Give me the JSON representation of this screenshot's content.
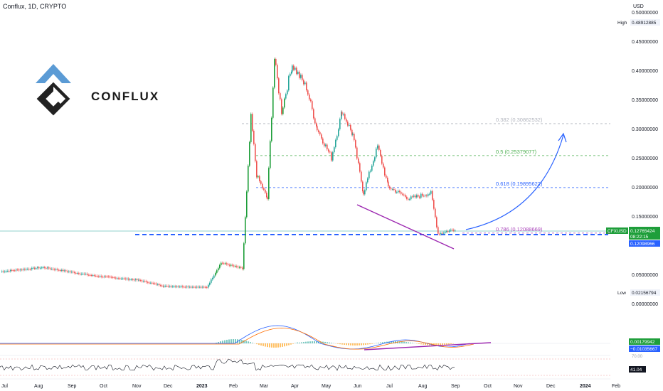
{
  "header": {
    "symbol_line": "Conflux, 1D, CRYPTO",
    "currency": "USD"
  },
  "logo": {
    "wordmark": "CONFLUX"
  },
  "price_axis": {
    "ticks": [
      "0.50000000",
      "0.45000000",
      "0.40000000",
      "0.35000000",
      "0.30000000",
      "0.25000000",
      "0.20000000",
      "0.15000000",
      "0.05000000",
      "0.00000000"
    ],
    "tick_values": [
      0.5,
      0.45,
      0.4,
      0.35,
      0.3,
      0.25,
      0.2,
      0.15,
      0.05,
      0.0
    ],
    "high_label": "High",
    "high_value": "0.48912885",
    "low_label": "Low",
    "low_value": "0.02156794",
    "last_symbol": "CFXUSD",
    "last_price": "0.12765424",
    "countdown": "08:22:15",
    "support_value": "0.12098966",
    "macd_value_1": "0.00179942",
    "macd_value_2": "−0.01035667",
    "rsi_value": "41.04",
    "rsi_level_text": "70.00"
  },
  "time_axis": {
    "labels": [
      "Jul",
      "Aug",
      "Sep",
      "Oct",
      "Nov",
      "Dec",
      "2023",
      "Feb",
      "Mar",
      "Apr",
      "May",
      "Jun",
      "Jul",
      "Aug",
      "Sep",
      "Oct",
      "Nov",
      "Dec",
      "2024",
      "Feb"
    ],
    "bold": [
      "2023",
      "2024"
    ]
  },
  "fib_levels": [
    {
      "label": "0.382 (0.30862532)",
      "price": 0.30862532,
      "color": "#b2b5be"
    },
    {
      "label": "0.5 (0.25379077)",
      "price": 0.25379077,
      "color": "#4caf50"
    },
    {
      "label": "0.618 (0.19895622)",
      "price": 0.19895622,
      "color": "#2962ff"
    },
    {
      "label": "0.786 (0.12088669)",
      "price": 0.12088669,
      "color": "#ab47bc"
    }
  ],
  "colors": {
    "up": "#26a69a",
    "up_strong": "#1e9e3a",
    "down": "#ef5350",
    "support_line": "#2962ff",
    "trend_line": "#9c27b0",
    "arrow": "#2962ff",
    "macd_line": "#2962ff",
    "signal_line": "#ff6d00",
    "rsi_line": "#131722",
    "logo_blue": "#5b9bd5",
    "logo_dark": "#222222"
  },
  "chart_data": {
    "type": "line",
    "title": "Conflux, 1D, CRYPTO",
    "x": [
      "2022-07",
      "2022-08",
      "2022-09",
      "2022-10",
      "2022-11",
      "2022-12",
      "2023-01",
      "2023-02",
      "2023-02-15",
      "2023-03-01",
      "2023-03-10",
      "2023-03-20",
      "2023-04-01",
      "2023-04-15",
      "2023-05-01",
      "2023-05-15",
      "2023-06-01",
      "2023-06-10",
      "2023-06-20",
      "2023-07-01",
      "2023-07-15",
      "2023-08-01",
      "2023-08-15",
      "2023-08-20",
      "2023-09-01",
      "2023-09-05"
    ],
    "series": [
      {
        "values": [
          0.055,
          0.062,
          0.048,
          0.042,
          0.038,
          0.03,
          0.028,
          0.075,
          0.07,
          0.3,
          0.22,
          0.45,
          0.34,
          0.37,
          0.3,
          0.26,
          0.31,
          0.2,
          0.27,
          0.19,
          0.175,
          0.185,
          0.16,
          0.12,
          0.125,
          0.1277
        ]
      }
    ],
    "ylim": [
      0.0,
      0.5
    ],
    "grid": false
  }
}
